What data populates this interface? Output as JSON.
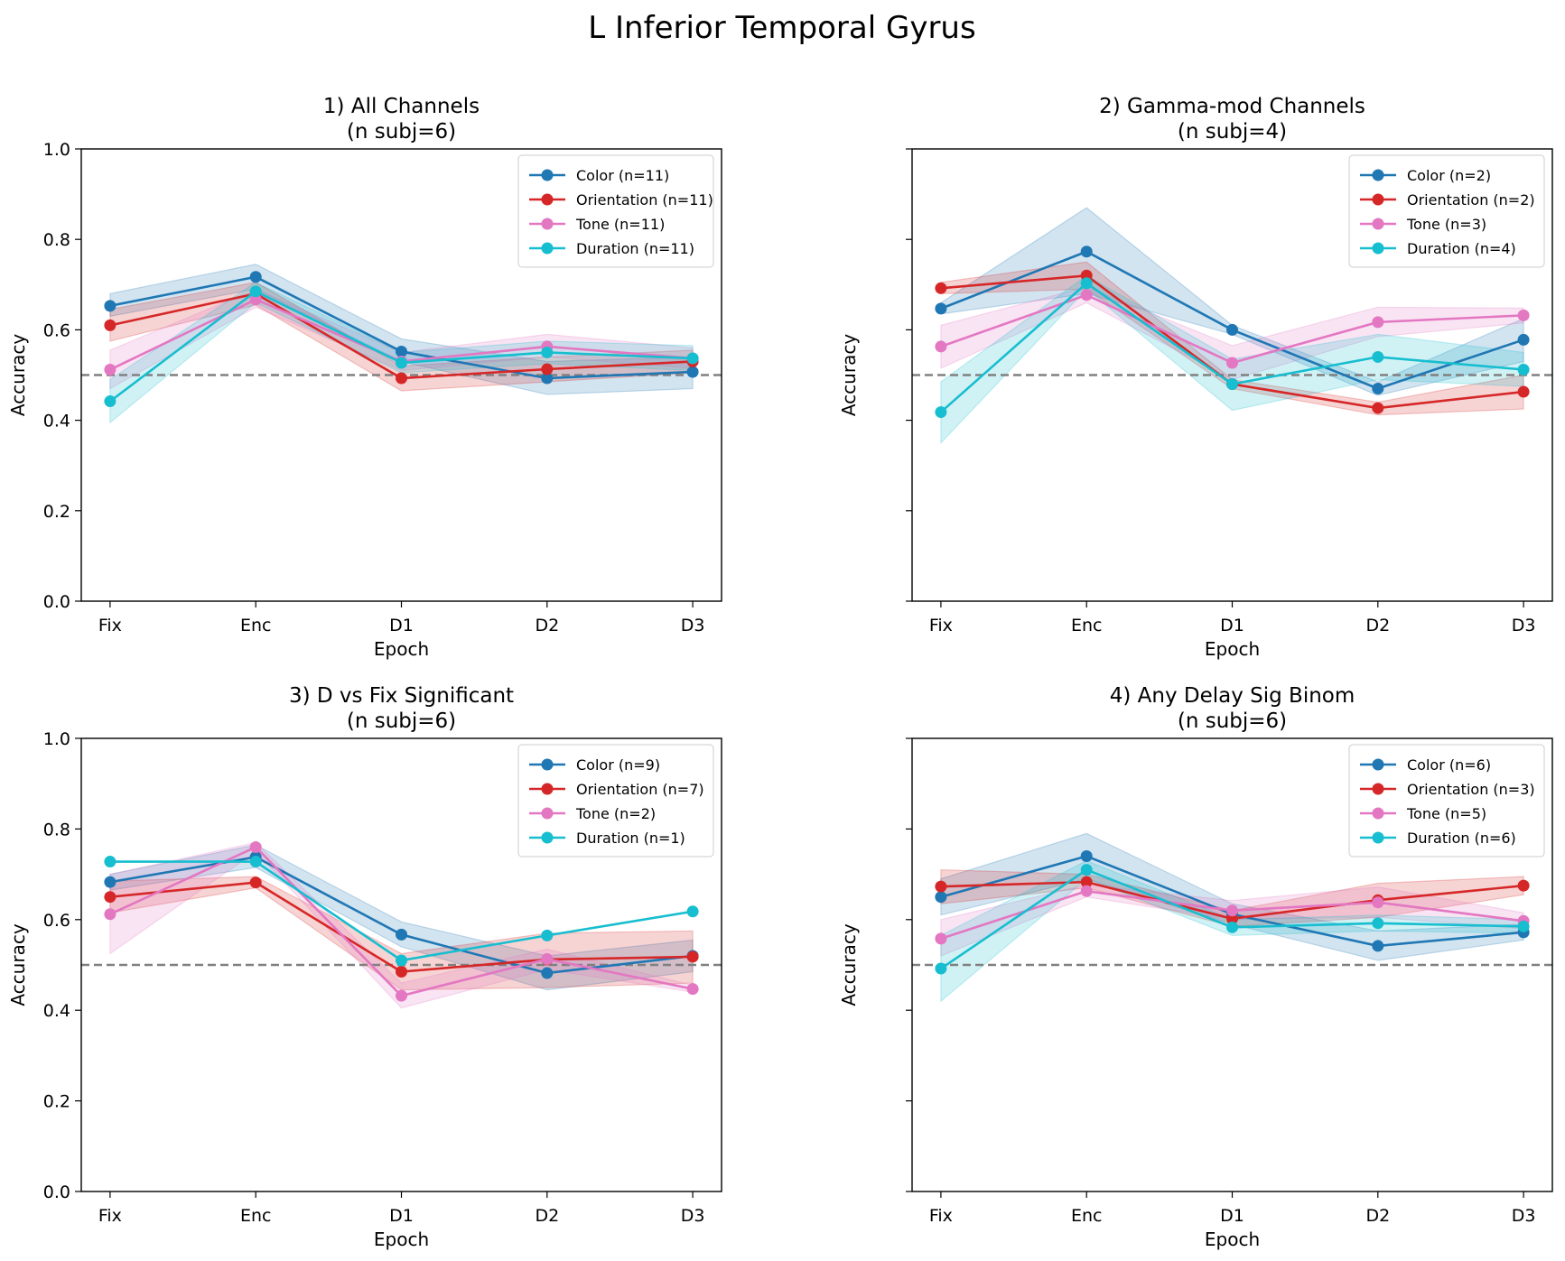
{
  "figure": {
    "suptitle": "L Inferior Temporal Gyrus"
  },
  "colors": {
    "Color": "#1f77b4",
    "Orientation": "#d62728",
    "Tone": "#e377c2",
    "Duration": "#17becf",
    "chance": "#808080"
  },
  "chart_data": [
    {
      "type": "line",
      "title": "1) All Channels\n(n subj=6)",
      "xlabel": "Epoch",
      "ylabel": "Accuracy",
      "categories": [
        "Fix",
        "Enc",
        "D1",
        "D2",
        "D3"
      ],
      "ylim": [
        0,
        1
      ],
      "yticks": [
        "0.0",
        "0.2",
        "0.4",
        "0.6",
        "0.8",
        "1.0"
      ],
      "chance_level": 0.5,
      "legend_position": "top-right",
      "series": [
        {
          "name": "Color (n=11)",
          "feature": "Color",
          "values": [
            0.653,
            0.717,
            0.552,
            0.493,
            0.507
          ],
          "lower": [
            0.63,
            0.69,
            0.53,
            0.457,
            0.47
          ],
          "upper": [
            0.68,
            0.745,
            0.58,
            0.53,
            0.54
          ]
        },
        {
          "name": "Orientation (n=11)",
          "feature": "Orientation",
          "values": [
            0.61,
            0.68,
            0.493,
            0.513,
            0.53
          ],
          "lower": [
            0.575,
            0.655,
            0.465,
            0.485,
            0.505
          ],
          "upper": [
            0.645,
            0.705,
            0.52,
            0.54,
            0.555
          ]
        },
        {
          "name": "Tone (n=11)",
          "feature": "Tone",
          "values": [
            0.512,
            0.667,
            0.53,
            0.563,
            0.537
          ],
          "lower": [
            0.47,
            0.65,
            0.51,
            0.54,
            0.515
          ],
          "upper": [
            0.555,
            0.69,
            0.55,
            0.59,
            0.56
          ]
        },
        {
          "name": "Duration (n=11)",
          "feature": "Duration",
          "values": [
            0.442,
            0.685,
            0.527,
            0.55,
            0.537
          ],
          "lower": [
            0.395,
            0.66,
            0.505,
            0.525,
            0.51
          ],
          "upper": [
            0.49,
            0.705,
            0.55,
            0.575,
            0.565
          ]
        }
      ]
    },
    {
      "type": "line",
      "title": "2) Gamma-mod Channels\n(n subj=4)",
      "xlabel": "Epoch",
      "ylabel": "Accuracy",
      "categories": [
        "Fix",
        "Enc",
        "D1",
        "D2",
        "D3"
      ],
      "ylim": [
        0,
        1
      ],
      "yticks": [
        "0.0",
        "0.2",
        "0.4",
        "0.6",
        "0.8",
        "1.0"
      ],
      "chance_level": 0.5,
      "legend_position": "top-right",
      "series": [
        {
          "name": "Color (n=2)",
          "feature": "Color",
          "values": [
            0.647,
            0.773,
            0.6,
            0.47,
            0.578
          ],
          "lower": [
            0.635,
            0.68,
            0.59,
            0.455,
            0.53
          ],
          "upper": [
            0.66,
            0.87,
            0.61,
            0.485,
            0.625
          ]
        },
        {
          "name": "Orientation (n=2)",
          "feature": "Orientation",
          "values": [
            0.692,
            0.72,
            0.48,
            0.427,
            0.463
          ],
          "lower": [
            0.68,
            0.69,
            0.47,
            0.412,
            0.425
          ],
          "upper": [
            0.705,
            0.75,
            0.49,
            0.44,
            0.5
          ]
        },
        {
          "name": "Tone (n=3)",
          "feature": "Tone",
          "values": [
            0.563,
            0.677,
            0.527,
            0.617,
            0.632
          ],
          "lower": [
            0.515,
            0.66,
            0.49,
            0.585,
            0.615
          ],
          "upper": [
            0.61,
            0.695,
            0.565,
            0.65,
            0.648
          ]
        },
        {
          "name": "Duration (n=4)",
          "feature": "Duration",
          "values": [
            0.418,
            0.703,
            0.48,
            0.54,
            0.512
          ],
          "lower": [
            0.35,
            0.69,
            0.422,
            0.49,
            0.475
          ],
          "upper": [
            0.485,
            0.72,
            0.535,
            0.59,
            0.55
          ]
        }
      ]
    },
    {
      "type": "line",
      "title": "3) D vs Fix Significant\n(n subj=6)",
      "xlabel": "Epoch",
      "ylabel": "Accuracy",
      "categories": [
        "Fix",
        "Enc",
        "D1",
        "D2",
        "D3"
      ],
      "ylim": [
        0,
        1
      ],
      "yticks": [
        "0.0",
        "0.2",
        "0.4",
        "0.6",
        "0.8",
        "1.0"
      ],
      "chance_level": 0.5,
      "legend_position": "top-right",
      "series": [
        {
          "name": "Color (n=9)",
          "feature": "Color",
          "values": [
            0.683,
            0.738,
            0.567,
            0.482,
            0.52
          ],
          "lower": [
            0.665,
            0.715,
            0.54,
            0.445,
            0.485
          ],
          "upper": [
            0.7,
            0.765,
            0.595,
            0.52,
            0.555
          ]
        },
        {
          "name": "Orientation (n=7)",
          "feature": "Orientation",
          "values": [
            0.65,
            0.682,
            0.485,
            0.512,
            0.518
          ],
          "lower": [
            0.615,
            0.67,
            0.445,
            0.45,
            0.46
          ],
          "upper": [
            0.685,
            0.695,
            0.525,
            0.57,
            0.575
          ]
        },
        {
          "name": "Tone (n=2)",
          "feature": "Tone",
          "values": [
            0.612,
            0.76,
            0.432,
            0.513,
            0.447
          ],
          "lower": [
            0.525,
            0.75,
            0.405,
            0.49,
            0.44
          ],
          "upper": [
            0.7,
            0.77,
            0.46,
            0.535,
            0.455
          ]
        },
        {
          "name": "Duration (n=1)",
          "feature": "Duration",
          "values": [
            0.728,
            0.728,
            0.51,
            0.565,
            0.618
          ]
        }
      ]
    },
    {
      "type": "line",
      "title": "4) Any Delay Sig Binom\n(n subj=6)",
      "xlabel": "Epoch",
      "ylabel": "Accuracy",
      "categories": [
        "Fix",
        "Enc",
        "D1",
        "D2",
        "D3"
      ],
      "ylim": [
        0,
        1
      ],
      "yticks": [
        "0.0",
        "0.2",
        "0.4",
        "0.6",
        "0.8",
        "1.0"
      ],
      "chance_level": 0.5,
      "legend_position": "top-right",
      "series": [
        {
          "name": "Color (n=6)",
          "feature": "Color",
          "values": [
            0.65,
            0.74,
            0.612,
            0.542,
            0.572
          ],
          "lower": [
            0.61,
            0.69,
            0.59,
            0.51,
            0.555
          ],
          "upper": [
            0.69,
            0.79,
            0.635,
            0.575,
            0.59
          ]
        },
        {
          "name": "Orientation (n=3)",
          "feature": "Orientation",
          "values": [
            0.673,
            0.683,
            0.602,
            0.643,
            0.675
          ],
          "lower": [
            0.635,
            0.67,
            0.585,
            0.605,
            0.655
          ],
          "upper": [
            0.71,
            0.7,
            0.62,
            0.68,
            0.695
          ]
        },
        {
          "name": "Tone (n=5)",
          "feature": "Tone",
          "values": [
            0.558,
            0.663,
            0.62,
            0.638,
            0.597
          ],
          "lower": [
            0.52,
            0.65,
            0.6,
            0.605,
            0.58
          ],
          "upper": [
            0.6,
            0.677,
            0.642,
            0.672,
            0.615
          ]
        },
        {
          "name": "Duration (n=6)",
          "feature": "Duration",
          "values": [
            0.492,
            0.71,
            0.583,
            0.592,
            0.585
          ],
          "lower": [
            0.42,
            0.69,
            0.565,
            0.575,
            0.57
          ],
          "upper": [
            0.565,
            0.73,
            0.6,
            0.61,
            0.6
          ]
        }
      ]
    }
  ]
}
